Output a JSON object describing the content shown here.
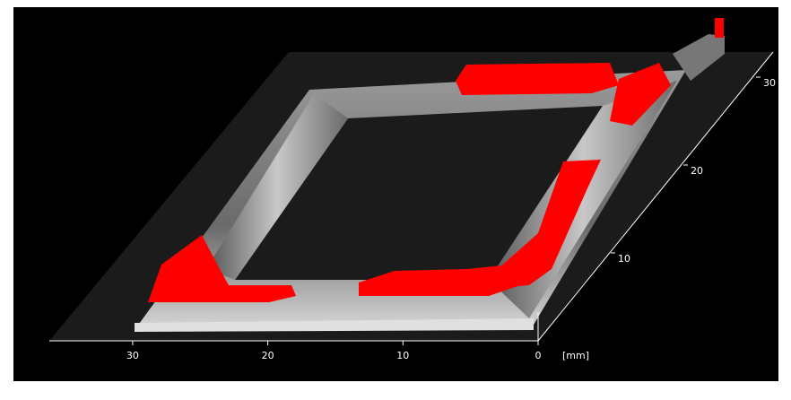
{
  "axes": {
    "x": {
      "ticks": [
        30,
        20,
        10,
        0
      ],
      "unit": "[mm]"
    },
    "y": {
      "ticks": [
        10,
        20,
        30
      ]
    }
  }
}
